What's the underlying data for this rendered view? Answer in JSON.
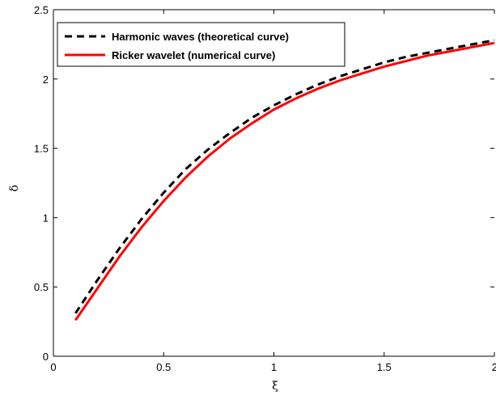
{
  "chart_data": {
    "type": "line",
    "title": "",
    "xlabel": "ξ",
    "ylabel": "δ",
    "xlim": [
      0,
      2
    ],
    "ylim": [
      0,
      2.5
    ],
    "xticks": [
      0,
      0.5,
      1,
      1.5,
      2
    ],
    "xtick_labels": [
      "0",
      "0.5",
      "1",
      "1.5",
      "2"
    ],
    "yticks": [
      0,
      0.5,
      1,
      1.5,
      2,
      2.5
    ],
    "ytick_labels": [
      "0",
      "0.5",
      "1",
      "1.5",
      "2",
      "2.5"
    ],
    "grid": false,
    "legend_position": "top-left",
    "series": [
      {
        "name": "Harmonic waves (theoretical curve)",
        "color": "#000000",
        "style": "dashed",
        "x": [
          0.1,
          0.2,
          0.3,
          0.4,
          0.5,
          0.6,
          0.7,
          0.8,
          0.9,
          1.0,
          1.1,
          1.2,
          1.3,
          1.4,
          1.5,
          1.6,
          1.7,
          1.8,
          1.9,
          2.0
        ],
        "y": [
          0.31,
          0.55,
          0.78,
          0.99,
          1.18,
          1.35,
          1.49,
          1.61,
          1.72,
          1.81,
          1.89,
          1.96,
          2.02,
          2.07,
          2.12,
          2.16,
          2.19,
          2.22,
          2.25,
          2.28
        ]
      },
      {
        "name": "Ricker wavelet (numerical curve)",
        "color": "#ff0000",
        "style": "solid",
        "x": [
          0.1,
          0.2,
          0.3,
          0.4,
          0.5,
          0.6,
          0.7,
          0.8,
          0.9,
          1.0,
          1.1,
          1.2,
          1.3,
          1.4,
          1.5,
          1.6,
          1.7,
          1.8,
          1.9,
          2.0
        ],
        "y": [
          0.26,
          0.49,
          0.72,
          0.93,
          1.12,
          1.29,
          1.44,
          1.57,
          1.68,
          1.78,
          1.86,
          1.93,
          1.99,
          2.04,
          2.09,
          2.13,
          2.17,
          2.2,
          2.23,
          2.26
        ]
      }
    ]
  }
}
